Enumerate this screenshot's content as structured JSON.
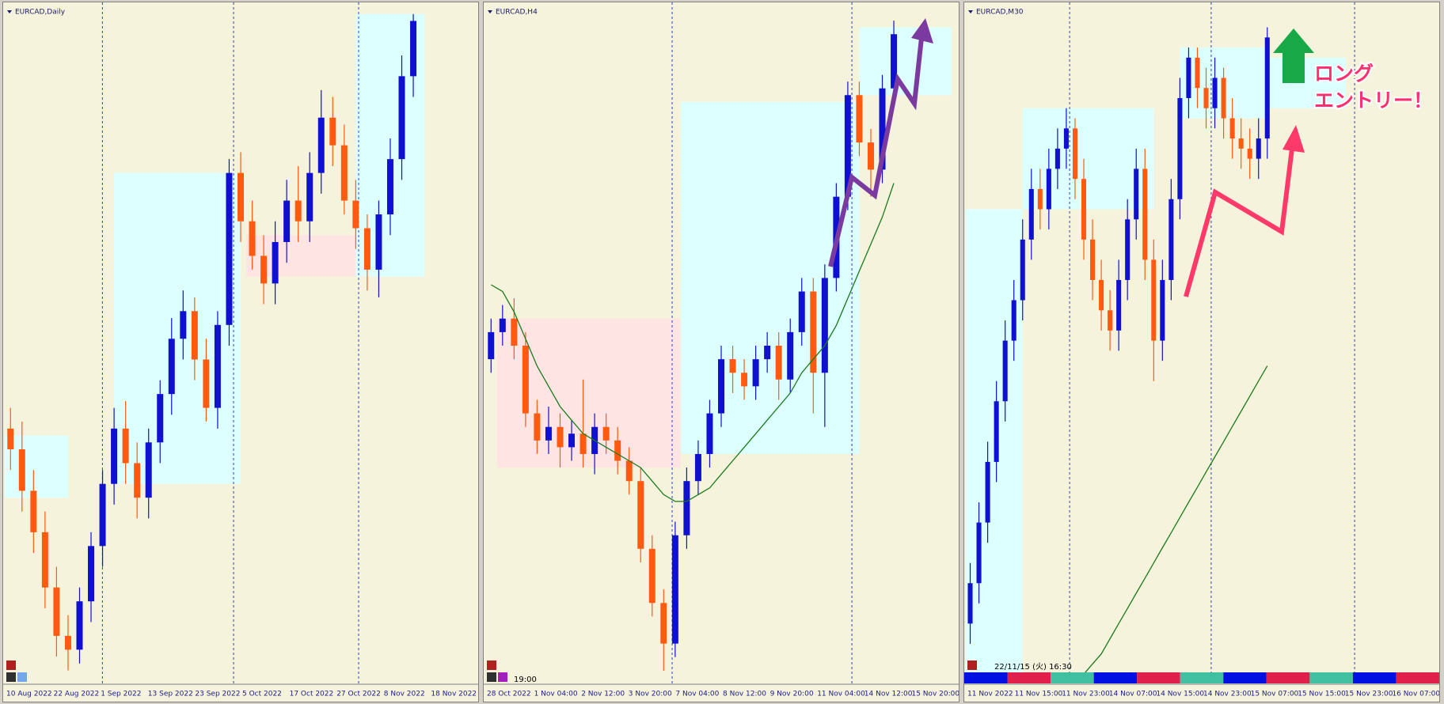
{
  "chart_data": [
    {
      "type": "candlestick",
      "title": "EURCAD,Daily",
      "up_color": "#1010d0",
      "down_color": "#ff5a10",
      "xlim": [
        -0.5,
        40.5
      ],
      "ylim": [
        1.298,
        1.396
      ],
      "open": [
        1.335,
        1.332,
        1.326,
        1.32,
        1.312,
        1.305,
        1.303,
        1.31,
        1.318,
        1.327,
        1.335,
        1.33,
        1.325,
        1.333,
        1.34,
        1.348,
        1.352,
        1.345,
        1.338,
        1.35,
        1.372,
        1.365,
        1.36,
        1.356,
        1.362,
        1.368,
        1.365,
        1.372,
        1.38,
        1.376,
        1.368,
        1.364,
        1.358,
        1.366,
        1.374,
        1.386
      ],
      "high": [
        1.338,
        1.336,
        1.329,
        1.323,
        1.315,
        1.308,
        1.312,
        1.32,
        1.329,
        1.338,
        1.339,
        1.333,
        1.335,
        1.342,
        1.351,
        1.355,
        1.354,
        1.348,
        1.352,
        1.374,
        1.375,
        1.368,
        1.363,
        1.365,
        1.371,
        1.373,
        1.375,
        1.384,
        1.383,
        1.379,
        1.371,
        1.366,
        1.368,
        1.377,
        1.389,
        1.395
      ],
      "low": [
        1.329,
        1.323,
        1.317,
        1.309,
        1.302,
        1.3,
        1.301,
        1.307,
        1.315,
        1.324,
        1.327,
        1.322,
        1.322,
        1.33,
        1.337,
        1.345,
        1.342,
        1.336,
        1.335,
        1.347,
        1.362,
        1.358,
        1.353,
        1.353,
        1.359,
        1.362,
        1.362,
        1.369,
        1.373,
        1.366,
        1.361,
        1.355,
        1.354,
        1.363,
        1.371,
        1.383
      ],
      "close": [
        1.332,
        1.326,
        1.32,
        1.312,
        1.305,
        1.303,
        1.31,
        1.318,
        1.327,
        1.335,
        1.33,
        1.325,
        1.333,
        1.34,
        1.348,
        1.352,
        1.345,
        1.338,
        1.35,
        1.372,
        1.365,
        1.36,
        1.356,
        1.362,
        1.368,
        1.365,
        1.372,
        1.38,
        1.376,
        1.368,
        1.364,
        1.358,
        1.366,
        1.374,
        1.386,
        1.394
      ],
      "zones": [
        {
          "x": [
            -0.5,
            5
          ],
          "y": [
            1.325,
            1.334
          ],
          "color": "#dcffff"
        },
        {
          "x": [
            9,
            20
          ],
          "y": [
            1.327,
            1.372
          ],
          "color": "#dcffff"
        },
        {
          "x": [
            20.5,
            30
          ],
          "y": [
            1.357,
            1.363
          ],
          "color": "#ffe4e4"
        },
        {
          "x": [
            30,
            36
          ],
          "y": [
            1.357,
            1.395
          ],
          "color": "#dcffff"
        }
      ],
      "xtick_labels": [
        "10 Aug 2022",
        "22 Aug 2022",
        "1 Sep 2022",
        "13 Sep 2022",
        "23 Sep 2022",
        "5 Oct 2022",
        "17 Oct 2022",
        "27 Oct 2022",
        "8 Nov 2022",
        "18 Nov 2022"
      ]
    },
    {
      "type": "candlestick",
      "title": "EURCAD,H4",
      "up_color": "#1010d0",
      "down_color": "#ff5a10",
      "xlim": [
        -0.5,
        40.5
      ],
      "ylim": [
        1.3,
        1.4
      ],
      "open": [
        1.348,
        1.352,
        1.354,
        1.35,
        1.34,
        1.336,
        1.338,
        1.335,
        1.337,
        1.334,
        1.338,
        1.336,
        1.333,
        1.33,
        1.32,
        1.312,
        1.306,
        1.322,
        1.33,
        1.334,
        1.34,
        1.348,
        1.346,
        1.344,
        1.348,
        1.35,
        1.345,
        1.352,
        1.358,
        1.346,
        1.36,
        1.372,
        1.387,
        1.38,
        1.376,
        1.388
      ],
      "high": [
        1.354,
        1.356,
        1.357,
        1.352,
        1.342,
        1.341,
        1.34,
        1.339,
        1.345,
        1.34,
        1.34,
        1.338,
        1.335,
        1.332,
        1.322,
        1.314,
        1.324,
        1.332,
        1.336,
        1.342,
        1.35,
        1.35,
        1.348,
        1.35,
        1.352,
        1.352,
        1.354,
        1.36,
        1.36,
        1.362,
        1.374,
        1.389,
        1.389,
        1.382,
        1.39,
        1.398
      ],
      "low": [
        1.346,
        1.35,
        1.348,
        1.338,
        1.334,
        1.334,
        1.332,
        1.333,
        1.332,
        1.331,
        1.334,
        1.331,
        1.328,
        1.318,
        1.31,
        1.302,
        1.304,
        1.32,
        1.328,
        1.332,
        1.338,
        1.343,
        1.342,
        1.342,
        1.346,
        1.342,
        1.343,
        1.35,
        1.34,
        1.338,
        1.358,
        1.37,
        1.378,
        1.372,
        1.374,
        1.386
      ],
      "close": [
        1.352,
        1.354,
        1.35,
        1.34,
        1.336,
        1.338,
        1.335,
        1.337,
        1.334,
        1.338,
        1.336,
        1.333,
        1.33,
        1.32,
        1.312,
        1.306,
        1.322,
        1.33,
        1.334,
        1.34,
        1.348,
        1.346,
        1.344,
        1.348,
        1.35,
        1.345,
        1.352,
        1.358,
        1.346,
        1.36,
        1.372,
        1.387,
        1.38,
        1.376,
        1.388,
        1.396
      ],
      "ma": {
        "color": "#1a7a1a",
        "values": [
          1.359,
          1.358,
          1.355,
          1.351,
          1.347,
          1.344,
          1.341,
          1.339,
          1.337,
          1.336,
          1.335,
          1.334,
          1.333,
          1.332,
          1.33,
          1.328,
          1.327,
          1.327,
          1.328,
          1.329,
          1.331,
          1.333,
          1.335,
          1.337,
          1.339,
          1.341,
          1.343,
          1.346,
          1.348,
          1.35,
          1.353,
          1.357,
          1.361,
          1.365,
          1.369,
          1.374
        ]
      },
      "zones": [
        {
          "x": [
            0.5,
            16.5
          ],
          "y": [
            1.332,
            1.354
          ],
          "color": "#ffe4e4"
        },
        {
          "x": [
            16.5,
            32
          ],
          "y": [
            1.334,
            1.386
          ],
          "color": "#dcffff"
        },
        {
          "x": [
            32,
            40
          ],
          "y": [
            1.387,
            1.397
          ],
          "color": "#dcffff"
        }
      ],
      "time_label": "19:00",
      "xtick_labels": [
        "28 Oct 2022",
        "1 Nov 04:00",
        "2 Nov 12:00",
        "3 Nov 20:00",
        "7 Nov 04:00",
        "8 Nov 12:00",
        "9 Nov 20:00",
        "11 Nov 04:00",
        "14 Nov 12:00",
        "15 Nov 20:00"
      ]
    },
    {
      "type": "candlestick",
      "title": "EURCAD,M30",
      "up_color": "#1010d0",
      "down_color": "#ff5a10",
      "xlim": [
        -0.5,
        53.5
      ],
      "ylim": [
        1.334,
        1.401
      ],
      "open": [
        1.34,
        1.344,
        1.35,
        1.356,
        1.362,
        1.368,
        1.372,
        1.378,
        1.383,
        1.381,
        1.385,
        1.387,
        1.389,
        1.384,
        1.378,
        1.374,
        1.371,
        1.369,
        1.374,
        1.38,
        1.385,
        1.376,
        1.368,
        1.374,
        1.382,
        1.392,
        1.396,
        1.393,
        1.391,
        1.394,
        1.39,
        1.388,
        1.387,
        1.386,
        1.388
      ],
      "high": [
        1.346,
        1.352,
        1.358,
        1.364,
        1.37,
        1.374,
        1.38,
        1.385,
        1.385,
        1.387,
        1.389,
        1.391,
        1.39,
        1.386,
        1.38,
        1.376,
        1.373,
        1.376,
        1.382,
        1.387,
        1.387,
        1.378,
        1.376,
        1.384,
        1.394,
        1.397,
        1.397,
        1.395,
        1.396,
        1.395,
        1.392,
        1.39,
        1.389,
        1.39,
        1.399
      ],
      "low": [
        1.338,
        1.342,
        1.348,
        1.354,
        1.36,
        1.366,
        1.37,
        1.376,
        1.379,
        1.379,
        1.383,
        1.385,
        1.382,
        1.376,
        1.372,
        1.369,
        1.367,
        1.367,
        1.372,
        1.378,
        1.374,
        1.364,
        1.366,
        1.372,
        1.38,
        1.39,
        1.391,
        1.389,
        1.389,
        1.388,
        1.386,
        1.385,
        1.384,
        1.384,
        1.386
      ],
      "close": [
        1.344,
        1.35,
        1.356,
        1.362,
        1.368,
        1.372,
        1.378,
        1.383,
        1.381,
        1.385,
        1.387,
        1.389,
        1.384,
        1.378,
        1.374,
        1.371,
        1.369,
        1.374,
        1.38,
        1.385,
        1.376,
        1.368,
        1.374,
        1.382,
        1.392,
        1.396,
        1.393,
        1.391,
        1.394,
        1.39,
        1.388,
        1.387,
        1.386,
        1.388,
        1.398
      ],
      "ma": {
        "color": "#1a7a1a",
        "values": [
          null,
          null,
          null,
          null,
          null,
          null,
          null,
          null,
          null,
          null,
          null,
          null,
          null,
          1.335,
          1.336,
          1.337,
          1.3385,
          1.34,
          1.3415,
          1.343,
          1.3445,
          1.346,
          1.3475,
          1.349,
          1.3505,
          1.352,
          1.3535,
          1.355,
          1.3565,
          1.358,
          1.3595,
          1.361,
          1.3625,
          1.364,
          1.3655
        ]
      },
      "zones": [
        {
          "x": [
            -0.5,
            6
          ],
          "y": [
            1.334,
            1.381
          ],
          "color": "#dcffff"
        },
        {
          "x": [
            6,
            21
          ],
          "y": [
            1.381,
            1.391
          ],
          "color": "#dcffff"
        },
        {
          "x": [
            24,
            34
          ],
          "y": [
            1.39,
            1.397
          ],
          "color": "#dcffff"
        },
        {
          "x": [
            34,
            43
          ],
          "y": [
            1.391,
            1.396
          ],
          "color": "#dcffff"
        }
      ],
      "time_label": "22/11/15 (火) 16:30",
      "annotation": [
        "ロング",
        "エントリー！"
      ],
      "xtick_labels": [
        "11 Nov 2022",
        "11 Nov 15:00",
        "11 Nov 23:00",
        "14 Nov 07:00",
        "14 Nov 15:00",
        "14 Nov 23:00",
        "15 Nov 07:00",
        "15 Nov 15:00",
        "15 Nov 23:00",
        "16 Nov 07:00"
      ]
    }
  ]
}
